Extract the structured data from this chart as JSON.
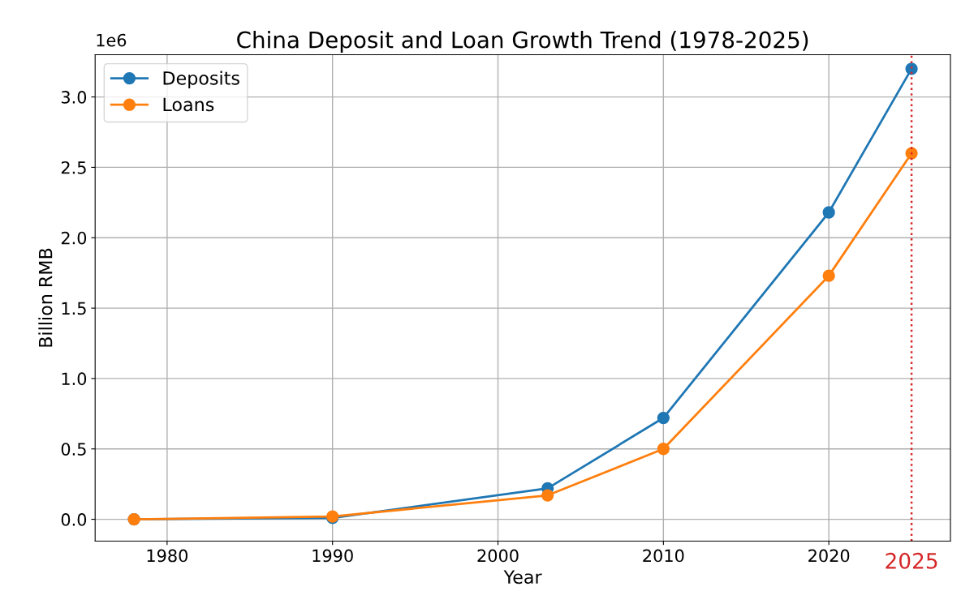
{
  "chart_data": {
    "type": "line",
    "title": "China Deposit and Loan Growth Trend (1978-2025)",
    "xlabel": "Year",
    "ylabel": "Billion RMB",
    "x": [
      1978,
      1990,
      2003,
      2010,
      2020,
      2025
    ],
    "series": [
      {
        "name": "Deposits",
        "color": "#1f77b4",
        "values": [
          0.0,
          0.01,
          0.22,
          0.72,
          2.18,
          3.2
        ]
      },
      {
        "name": "Loans",
        "color": "#ff7f0e",
        "values": [
          0.0,
          0.02,
          0.17,
          0.5,
          1.73,
          2.6
        ]
      }
    ],
    "xlim": [
      1975.65,
      2027.35
    ],
    "xticks": [
      1980,
      1990,
      2000,
      2010,
      2020
    ],
    "ylim": [
      -0.155,
      3.3
    ],
    "yticks": [
      {
        "value": 0,
        "label": "0.0"
      },
      0.5,
      {
        "value": 1,
        "label": "1.0"
      },
      1.5,
      {
        "value": 2,
        "label": "2.0"
      },
      2.5,
      {
        "value": 3,
        "label": "3.0"
      }
    ],
    "annotations": [
      "1e6"
    ],
    "ref_lines": [
      {
        "axis": "x",
        "value": 2025,
        "label": "2025",
        "color": "#d62728",
        "line_style": "dotted"
      }
    ],
    "grid": true,
    "legend": "top left",
    "marker": "circle",
    "line_style": "solid"
  }
}
